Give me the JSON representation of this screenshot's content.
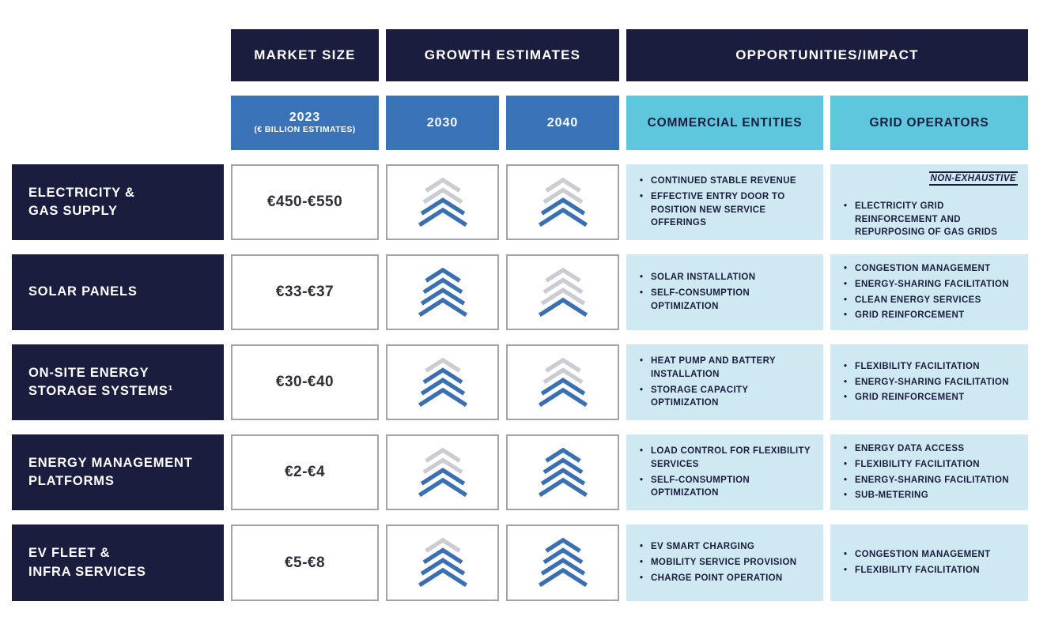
{
  "header": {
    "market_size": "MARKET SIZE",
    "growth_estimates": "GROWTH ESTIMATES",
    "opportunities_impact": "OPPORTUNITIES/IMPACT",
    "year_2023": "2023",
    "year_2023_unit": "(€ BILLION ESTIMATES)",
    "year_2030": "2030",
    "year_2040": "2040",
    "commercial_entities": "COMMERCIAL ENTITIES",
    "grid_operators": "GRID OPERATORS"
  },
  "note": "NON-EXHAUSTIVE",
  "rows": [
    {
      "label": "ELECTRICITY &\nGAS SUPPLY",
      "market_size": "€450-€550",
      "growth_2030": {
        "gray": 2,
        "blue": 2
      },
      "growth_2040": {
        "gray": 2,
        "blue": 2
      },
      "commercial": [
        "CONTINUED STABLE REVENUE",
        "EFFECTIVE ENTRY DOOR TO POSITION NEW SERVICE OFFERINGS"
      ],
      "grid": [
        "ELECTRICITY GRID REINFORCEMENT AND REPURPOSING OF GAS GRIDS"
      ]
    },
    {
      "label": "SOLAR PANELS",
      "market_size": "€33-€37",
      "growth_2030": {
        "gray": 0,
        "blue": 4
      },
      "growth_2040": {
        "gray": 3,
        "blue": 1
      },
      "commercial": [
        "SOLAR INSTALLATION",
        "SELF-CONSUMPTION OPTIMIZATION"
      ],
      "grid": [
        "CONGESTION MANAGEMENT",
        "ENERGY-SHARING FACILITATION",
        "CLEAN ENERGY SERVICES",
        "GRID REINFORCEMENT"
      ]
    },
    {
      "label": "ON-SITE ENERGY\nSTORAGE SYSTEMS¹",
      "market_size": "€30-€40",
      "growth_2030": {
        "gray": 1,
        "blue": 3
      },
      "growth_2040": {
        "gray": 2,
        "blue": 2
      },
      "commercial": [
        "HEAT PUMP AND BATTERY INSTALLATION",
        "STORAGE CAPACITY OPTIMIZATION"
      ],
      "grid": [
        "FLEXIBILITY FACILITATION",
        "ENERGY-SHARING FACILITATION",
        "GRID REINFORCEMENT"
      ]
    },
    {
      "label": "ENERGY MANAGEMENT\nPLATFORMS",
      "market_size": "€2-€4",
      "growth_2030": {
        "gray": 2,
        "blue": 2
      },
      "growth_2040": {
        "gray": 0,
        "blue": 4
      },
      "commercial": [
        "LOAD CONTROL FOR FLEXIBILITY SERVICES",
        "SELF-CONSUMPTION OPTIMIZATION"
      ],
      "grid": [
        "ENERGY DATA ACCESS",
        "FLEXIBILITY FACILITATION",
        "ENERGY-SHARING FACILITATION",
        "SUB-METERING"
      ]
    },
    {
      "label": "EV FLEET &\nINFRA SERVICES",
      "market_size": "€5-€8",
      "growth_2030": {
        "gray": 1,
        "blue": 3
      },
      "growth_2040": {
        "gray": 0,
        "blue": 4
      },
      "commercial": [
        "EV SMART CHARGING",
        "MOBILITY SERVICE PROVISION",
        "CHARGE POINT OPERATION"
      ],
      "grid": [
        "CONGESTION MANAGEMENT",
        "FLEXIBILITY FACILITATION"
      ]
    }
  ],
  "colors": {
    "navy": "#1b1d3f",
    "blue": "#3b73b9",
    "cyan": "#5ec7de",
    "light_blue": "#cee9f2",
    "chevron_blue": "#3a6fb2",
    "chevron_gray": "#cbcbd2",
    "cell_border": "#a2a3ac"
  }
}
